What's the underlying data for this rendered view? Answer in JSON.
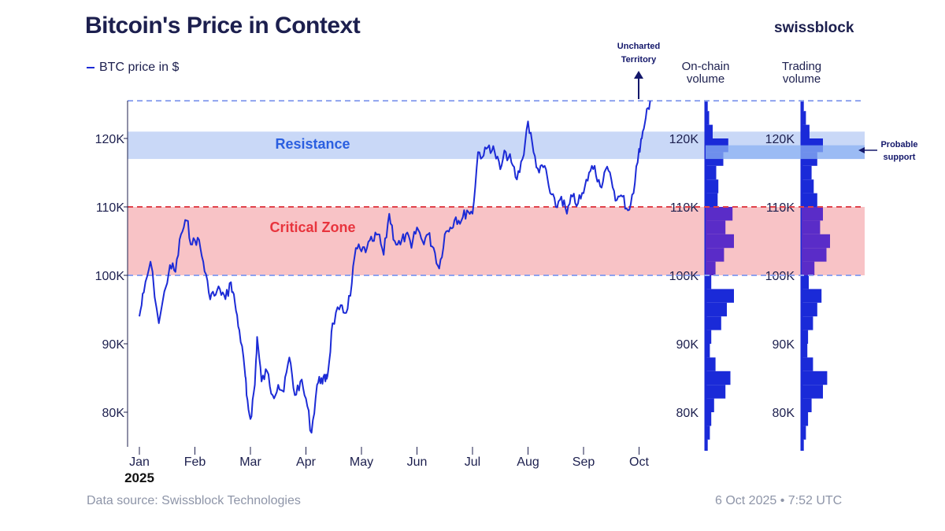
{
  "header": {
    "title": "Bitcoin's Price in Context",
    "brand": "swissblock",
    "legend_label": "BTC price in $"
  },
  "footer": {
    "source": "Data source: Swissblock Technologies",
    "timestamp": "6 Oct 2025 • 7:52 UTC"
  },
  "annotations": {
    "uncharted_line1": "Uncharted",
    "uncharted_line2": "Territory",
    "probable_line1": "Probable",
    "probable_line2": "support"
  },
  "chart_data": [
    {
      "type": "line",
      "title": "Bitcoin's Price in Context",
      "series_name": "BTC price in $",
      "xlabel": "",
      "ylabel": "",
      "ylim": [
        75000,
        127000
      ],
      "y_ticks": [
        {
          "value": 80000,
          "label": "80K"
        },
        {
          "value": 90000,
          "label": "90K"
        },
        {
          "value": 100000,
          "label": "100K"
        },
        {
          "value": 110000,
          "label": "110K"
        },
        {
          "value": 120000,
          "label": "120K"
        }
      ],
      "x_ticks": [
        {
          "month": 0,
          "label": "Jan"
        },
        {
          "month": 1,
          "label": "Feb"
        },
        {
          "month": 2,
          "label": "Mar"
        },
        {
          "month": 3,
          "label": "Apr"
        },
        {
          "month": 4,
          "label": "May"
        },
        {
          "month": 5,
          "label": "Jun"
        },
        {
          "month": 6,
          "label": "Jul"
        },
        {
          "month": 7,
          "label": "Aug"
        },
        {
          "month": 8,
          "label": "Sep"
        },
        {
          "month": 9,
          "label": "Oct"
        }
      ],
      "year_label": "2025",
      "x_months": [
        0,
        0.08,
        0.2,
        0.35,
        0.55,
        0.65,
        0.75,
        0.85,
        0.95,
        1.05,
        1.15,
        1.25,
        1.35,
        1.45,
        1.55,
        1.65,
        1.72,
        1.8,
        1.9,
        1.93,
        2.0,
        2.08,
        2.12,
        2.2,
        2.3,
        2.4,
        2.5,
        2.6,
        2.7,
        2.8,
        2.9,
        3.0,
        3.1,
        3.2,
        3.28,
        3.35,
        3.4,
        3.48,
        3.6,
        3.7,
        3.8,
        3.9,
        4.0,
        4.1,
        4.2,
        4.3,
        4.4,
        4.5,
        4.6,
        4.7,
        4.8,
        4.9,
        5.0,
        5.1,
        5.2,
        5.3,
        5.4,
        5.5,
        5.6,
        5.7,
        5.8,
        5.9,
        6.0,
        6.1,
        6.2,
        6.3,
        6.4,
        6.5,
        6.6,
        6.7,
        6.8,
        6.9,
        7.0,
        7.1,
        7.2,
        7.3,
        7.4,
        7.5,
        7.6,
        7.7,
        7.8,
        7.9,
        8.0,
        8.1,
        8.2,
        8.3,
        8.4,
        8.5,
        8.6,
        8.7,
        8.8,
        8.9,
        9.0,
        9.05,
        9.12,
        9.2
      ],
      "values": [
        94000,
        97500,
        102000,
        93000,
        101500,
        100500,
        106000,
        108000,
        104500,
        105500,
        102000,
        97500,
        97000,
        98000,
        96500,
        99000,
        96000,
        92000,
        86000,
        82500,
        79000,
        84000,
        91000,
        84500,
        86000,
        82500,
        84000,
        83000,
        88000,
        82500,
        84500,
        82000,
        77000,
        84000,
        85000,
        84500,
        86000,
        93000,
        95000,
        94500,
        97000,
        104000,
        103500,
        104000,
        105000,
        106000,
        103000,
        109000,
        105000,
        104500,
        106000,
        104000,
        107000,
        105000,
        106000,
        104000,
        101000,
        106000,
        107000,
        108500,
        108000,
        109500,
        109000,
        118000,
        117500,
        119000,
        118000,
        115500,
        118000,
        116500,
        114000,
        117000,
        122500,
        118000,
        115000,
        116000,
        112000,
        110000,
        111500,
        109000,
        111500,
        110500,
        112000,
        115000,
        116000,
        113000,
        115500,
        114000,
        111000,
        111500,
        109500,
        112000,
        118500,
        120000,
        123000,
        125500
      ],
      "zones": [
        {
          "name": "Resistance",
          "min": 117000,
          "max": 121000,
          "color": "#c9d8f7"
        },
        {
          "name": "Critical Zone",
          "min": 100000,
          "max": 110000,
          "color": "#f8c3c6"
        }
      ],
      "reference_lines": [
        {
          "value": 125500,
          "style": "dashed",
          "color": "#8ea2ef"
        },
        {
          "value": 110000,
          "style": "dashed",
          "color": "#e0434b"
        },
        {
          "value": 100000,
          "style": "dashed",
          "color": "#8ea2ef"
        }
      ],
      "probable_support": {
        "min": 117000,
        "max": 119000,
        "color": "#8bb2f3"
      }
    },
    {
      "type": "bar",
      "orientation": "horizontal",
      "title": "On-chain volume",
      "title_line1": "On-chain",
      "title_line2": "volume",
      "price_bins_k": [
        125,
        123,
        121,
        119,
        117,
        115,
        113,
        111,
        109,
        107,
        105,
        103,
        101,
        99,
        97,
        95,
        93,
        91,
        89,
        87,
        85,
        83,
        81,
        79,
        77,
        75
      ],
      "values": [
        3,
        5,
        10,
        32,
        25,
        15,
        18,
        17,
        38,
        28,
        40,
        26,
        14,
        8,
        40,
        30,
        22,
        8,
        6,
        14,
        35,
        28,
        12,
        8,
        6,
        3
      ],
      "y_ticks": [
        "120K",
        "110K",
        "100K",
        "90K",
        "80K"
      ]
    },
    {
      "type": "bar",
      "orientation": "horizontal",
      "title": "Trading volume",
      "title_line1": "Trading",
      "title_line2": "volume",
      "price_bins_k": [
        125,
        123,
        121,
        119,
        117,
        115,
        113,
        111,
        109,
        107,
        105,
        103,
        101,
        99,
        97,
        95,
        93,
        91,
        89,
        87,
        85,
        83,
        81,
        79,
        77,
        75
      ],
      "values": [
        3,
        6,
        11,
        30,
        22,
        14,
        17,
        22,
        30,
        26,
        40,
        35,
        18,
        10,
        28,
        22,
        16,
        9,
        8,
        16,
        36,
        30,
        14,
        9,
        6,
        3
      ],
      "y_ticks": [
        "120K",
        "110K",
        "100K",
        "90K",
        "80K"
      ]
    }
  ]
}
